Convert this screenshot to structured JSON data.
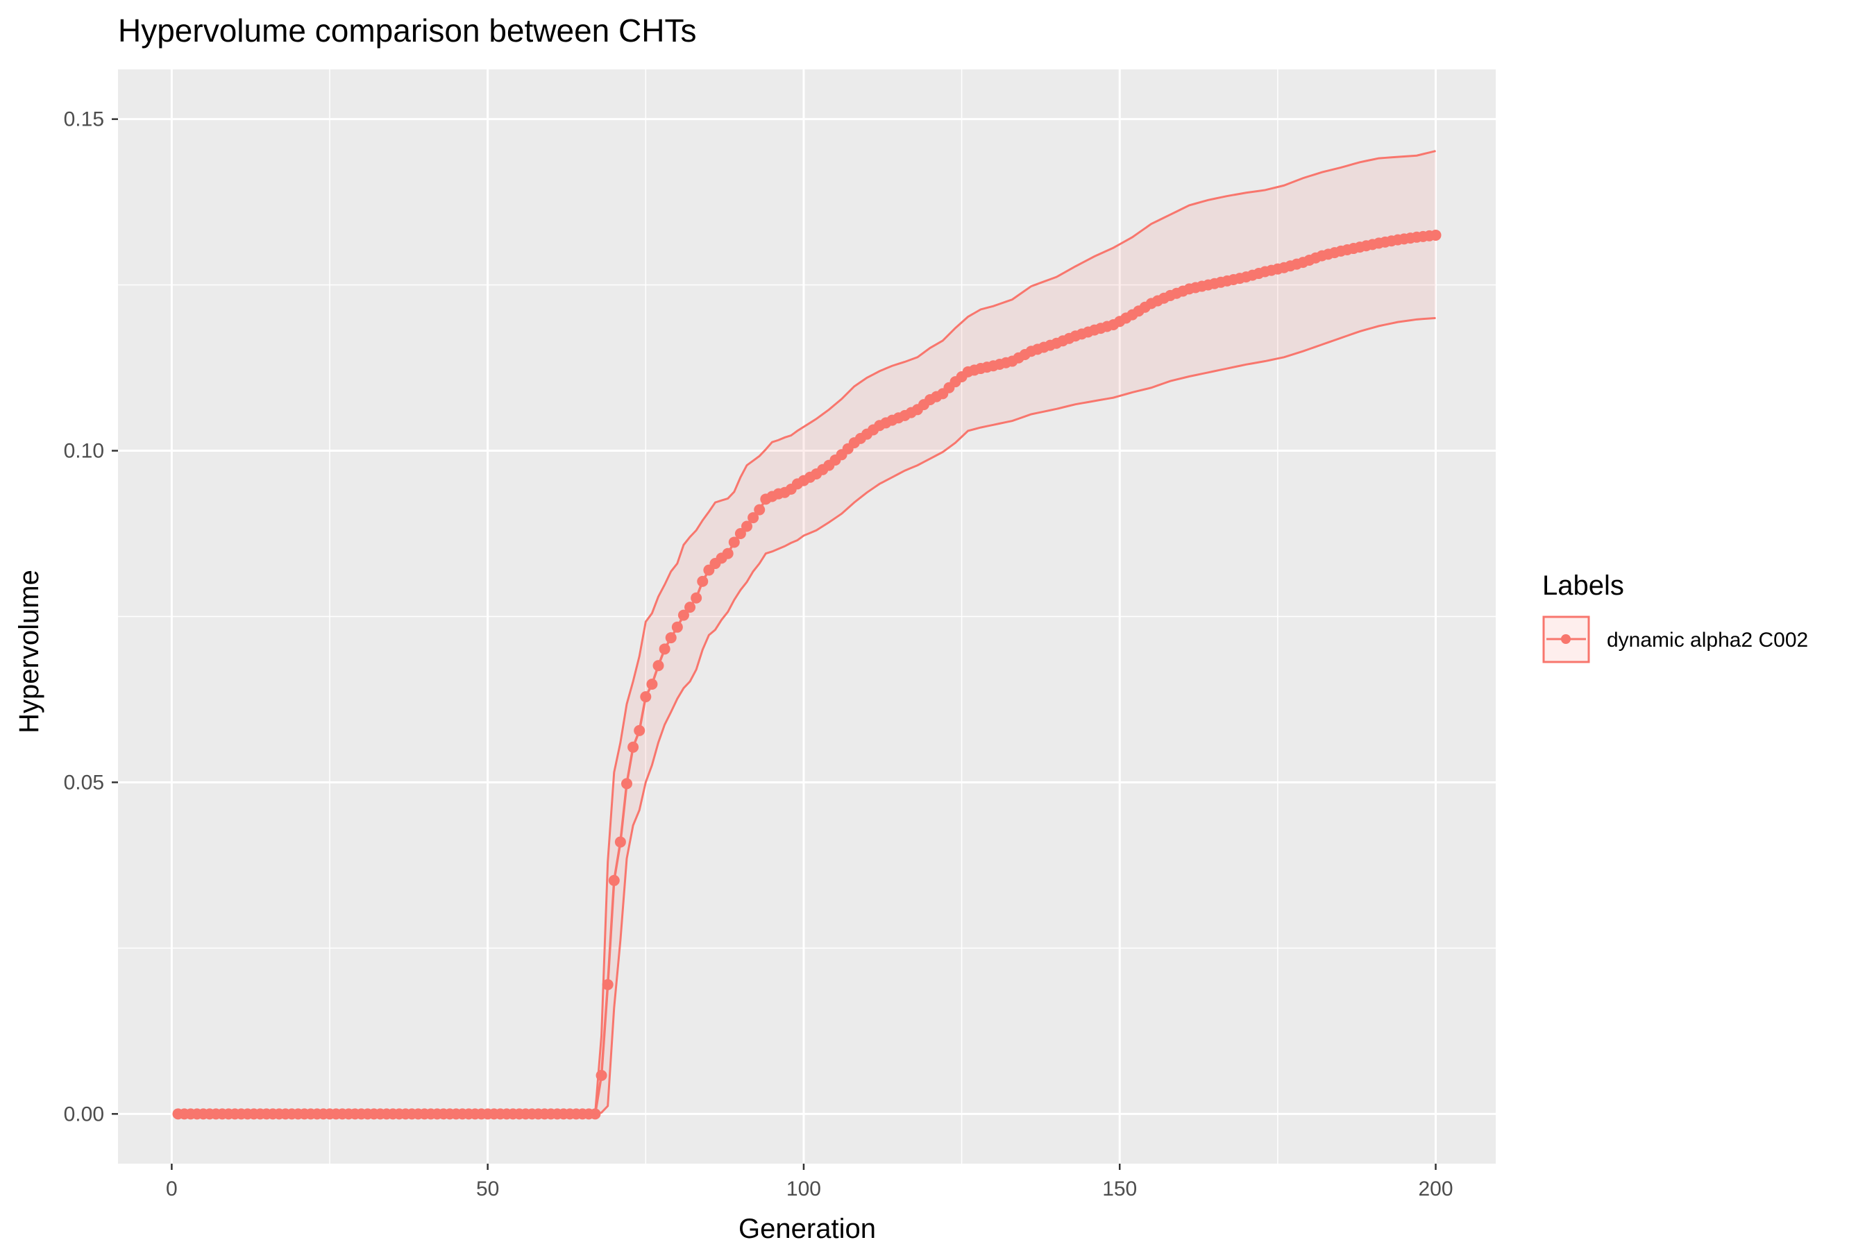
{
  "chart_data": {
    "type": "line",
    "title": "Hypervolume comparison between CHTs",
    "xlabel": "Generation",
    "ylabel": "Hypervolume",
    "xlim": [
      -8.5,
      209.5
    ],
    "ylim": [
      -0.0075,
      0.1575
    ],
    "x_ticks": [
      0,
      50,
      100,
      150,
      200
    ],
    "x_tick_labels": [
      "0",
      "50",
      "100",
      "150",
      "200"
    ],
    "y_ticks": [
      0.0,
      0.05,
      0.1,
      0.15
    ],
    "y_tick_labels": [
      "0.00",
      "0.05",
      "0.10",
      "0.15"
    ],
    "grid": true,
    "legend": {
      "title": "Labels",
      "position": "right"
    },
    "series": [
      {
        "name": "dynamic alpha2 C002",
        "color": "#F8766D",
        "ribbon_fill": "#F8766D",
        "mean": [
          [
            1,
            0
          ],
          [
            67,
            0
          ],
          [
            68,
            0.0058
          ],
          [
            69,
            0.0195
          ],
          [
            70,
            0.0352
          ],
          [
            71,
            0.041
          ],
          [
            72,
            0.0498
          ],
          [
            73,
            0.0553
          ],
          [
            74,
            0.0578
          ],
          [
            75,
            0.0629
          ],
          [
            76,
            0.0648
          ],
          [
            77,
            0.0676
          ],
          [
            78,
            0.0701
          ],
          [
            79,
            0.0718
          ],
          [
            80,
            0.0734
          ],
          [
            81,
            0.0752
          ],
          [
            82,
            0.0764
          ],
          [
            83,
            0.0778
          ],
          [
            84,
            0.0803
          ],
          [
            85,
            0.082
          ],
          [
            86,
            0.083
          ],
          [
            87,
            0.0838
          ],
          [
            88,
            0.0845
          ],
          [
            89,
            0.0862
          ],
          [
            90,
            0.0875
          ],
          [
            91,
            0.0886
          ],
          [
            92,
            0.0899
          ],
          [
            93,
            0.0911
          ],
          [
            94,
            0.0927
          ],
          [
            95,
            0.0931
          ],
          [
            96,
            0.0935
          ],
          [
            97,
            0.0937
          ],
          [
            98,
            0.0942
          ],
          [
            99,
            0.095
          ],
          [
            100,
            0.0955
          ],
          [
            102,
            0.0965
          ],
          [
            104,
            0.0978
          ],
          [
            106,
            0.0994
          ],
          [
            108,
            0.1012
          ],
          [
            110,
            0.1025
          ],
          [
            112,
            0.1038
          ],
          [
            114,
            0.1046
          ],
          [
            116,
            0.1053
          ],
          [
            118,
            0.1062
          ],
          [
            120,
            0.1077
          ],
          [
            122,
            0.1086
          ],
          [
            124,
            0.1104
          ],
          [
            126,
            0.1119
          ],
          [
            128,
            0.1124
          ],
          [
            130,
            0.1128
          ],
          [
            133,
            0.1135
          ],
          [
            136,
            0.115
          ],
          [
            140,
            0.1162
          ],
          [
            143,
            0.1173
          ],
          [
            146,
            0.1182
          ],
          [
            149,
            0.119
          ],
          [
            152,
            0.1205
          ],
          [
            155,
            0.1222
          ],
          [
            158,
            0.1234
          ],
          [
            161,
            0.1244
          ],
          [
            164,
            0.125
          ],
          [
            167,
            0.1256
          ],
          [
            170,
            0.1262
          ],
          [
            173,
            0.127
          ],
          [
            176,
            0.1276
          ],
          [
            179,
            0.1284
          ],
          [
            182,
            0.1294
          ],
          [
            185,
            0.1301
          ],
          [
            188,
            0.1307
          ],
          [
            191,
            0.1313
          ],
          [
            194,
            0.1318
          ],
          [
            197,
            0.1322
          ],
          [
            200,
            0.1325
          ]
        ],
        "upper": [
          [
            1,
            0
          ],
          [
            67,
            0
          ],
          [
            68,
            0.0118
          ],
          [
            69,
            0.038
          ],
          [
            70,
            0.0515
          ],
          [
            71,
            0.056
          ],
          [
            72,
            0.0618
          ],
          [
            73,
            0.0652
          ],
          [
            74,
            0.069
          ],
          [
            75,
            0.0742
          ],
          [
            76,
            0.0755
          ],
          [
            77,
            0.078
          ],
          [
            78,
            0.0798
          ],
          [
            79,
            0.0818
          ],
          [
            80,
            0.083
          ],
          [
            81,
            0.0858
          ],
          [
            82,
            0.087
          ],
          [
            83,
            0.088
          ],
          [
            84,
            0.0895
          ],
          [
            85,
            0.0908
          ],
          [
            86,
            0.0922
          ],
          [
            87,
            0.0925
          ],
          [
            88,
            0.0928
          ],
          [
            89,
            0.0938
          ],
          [
            90,
            0.096
          ],
          [
            91,
            0.0978
          ],
          [
            92,
            0.0985
          ],
          [
            93,
            0.0992
          ],
          [
            94,
            0.1002
          ],
          [
            95,
            0.1013
          ],
          [
            96,
            0.1016
          ],
          [
            97,
            0.102
          ],
          [
            98,
            0.1023
          ],
          [
            99,
            0.103
          ],
          [
            100,
            0.1036
          ],
          [
            102,
            0.1048
          ],
          [
            104,
            0.1062
          ],
          [
            106,
            0.1078
          ],
          [
            108,
            0.1097
          ],
          [
            110,
            0.111
          ],
          [
            112,
            0.112
          ],
          [
            114,
            0.1128
          ],
          [
            116,
            0.1134
          ],
          [
            118,
            0.1141
          ],
          [
            120,
            0.1155
          ],
          [
            122,
            0.1166
          ],
          [
            124,
            0.1185
          ],
          [
            126,
            0.1202
          ],
          [
            128,
            0.1213
          ],
          [
            130,
            0.1218
          ],
          [
            133,
            0.1228
          ],
          [
            136,
            0.1248
          ],
          [
            140,
            0.1262
          ],
          [
            143,
            0.1278
          ],
          [
            146,
            0.1293
          ],
          [
            149,
            0.1306
          ],
          [
            152,
            0.1322
          ],
          [
            155,
            0.1342
          ],
          [
            158,
            0.1356
          ],
          [
            161,
            0.137
          ],
          [
            164,
            0.1378
          ],
          [
            167,
            0.1384
          ],
          [
            170,
            0.1389
          ],
          [
            173,
            0.1393
          ],
          [
            176,
            0.14
          ],
          [
            179,
            0.1411
          ],
          [
            182,
            0.142
          ],
          [
            185,
            0.1427
          ],
          [
            188,
            0.1435
          ],
          [
            191,
            0.1441
          ],
          [
            194,
            0.1443
          ],
          [
            197,
            0.1445
          ],
          [
            200,
            0.1452
          ]
        ],
        "lower": [
          [
            1,
            0
          ],
          [
            67,
            0
          ],
          [
            68,
            0.0002
          ],
          [
            69,
            0.0012
          ],
          [
            70,
            0.016
          ],
          [
            71,
            0.0262
          ],
          [
            72,
            0.0385
          ],
          [
            73,
            0.0435
          ],
          [
            74,
            0.0458
          ],
          [
            75,
            0.05
          ],
          [
            76,
            0.0526
          ],
          [
            77,
            0.056
          ],
          [
            78,
            0.0587
          ],
          [
            79,
            0.0606
          ],
          [
            80,
            0.0626
          ],
          [
            81,
            0.0642
          ],
          [
            82,
            0.0652
          ],
          [
            83,
            0.067
          ],
          [
            84,
            0.07
          ],
          [
            85,
            0.0722
          ],
          [
            86,
            0.073
          ],
          [
            87,
            0.0745
          ],
          [
            88,
            0.0757
          ],
          [
            89,
            0.0775
          ],
          [
            90,
            0.079
          ],
          [
            91,
            0.0802
          ],
          [
            92,
            0.0818
          ],
          [
            93,
            0.083
          ],
          [
            94,
            0.0845
          ],
          [
            95,
            0.0848
          ],
          [
            96,
            0.0852
          ],
          [
            97,
            0.0856
          ],
          [
            98,
            0.0861
          ],
          [
            99,
            0.0865
          ],
          [
            100,
            0.0872
          ],
          [
            102,
            0.088
          ],
          [
            104,
            0.0892
          ],
          [
            106,
            0.0905
          ],
          [
            108,
            0.0922
          ],
          [
            110,
            0.0937
          ],
          [
            112,
            0.095
          ],
          [
            114,
            0.096
          ],
          [
            116,
            0.097
          ],
          [
            118,
            0.0978
          ],
          [
            120,
            0.0988
          ],
          [
            122,
            0.0998
          ],
          [
            124,
            0.1012
          ],
          [
            126,
            0.103
          ],
          [
            128,
            0.1035
          ],
          [
            130,
            0.1039
          ],
          [
            133,
            0.1045
          ],
          [
            136,
            0.1055
          ],
          [
            140,
            0.1063
          ],
          [
            143,
            0.107
          ],
          [
            146,
            0.1075
          ],
          [
            149,
            0.108
          ],
          [
            152,
            0.1088
          ],
          [
            155,
            0.1095
          ],
          [
            158,
            0.1105
          ],
          [
            161,
            0.1112
          ],
          [
            164,
            0.1118
          ],
          [
            167,
            0.1124
          ],
          [
            170,
            0.113
          ],
          [
            173,
            0.1135
          ],
          [
            176,
            0.1141
          ],
          [
            179,
            0.115
          ],
          [
            182,
            0.116
          ],
          [
            185,
            0.117
          ],
          [
            188,
            0.118
          ],
          [
            191,
            0.1188
          ],
          [
            194,
            0.1194
          ],
          [
            197,
            0.1198
          ],
          [
            200,
            0.12
          ]
        ]
      }
    ]
  }
}
